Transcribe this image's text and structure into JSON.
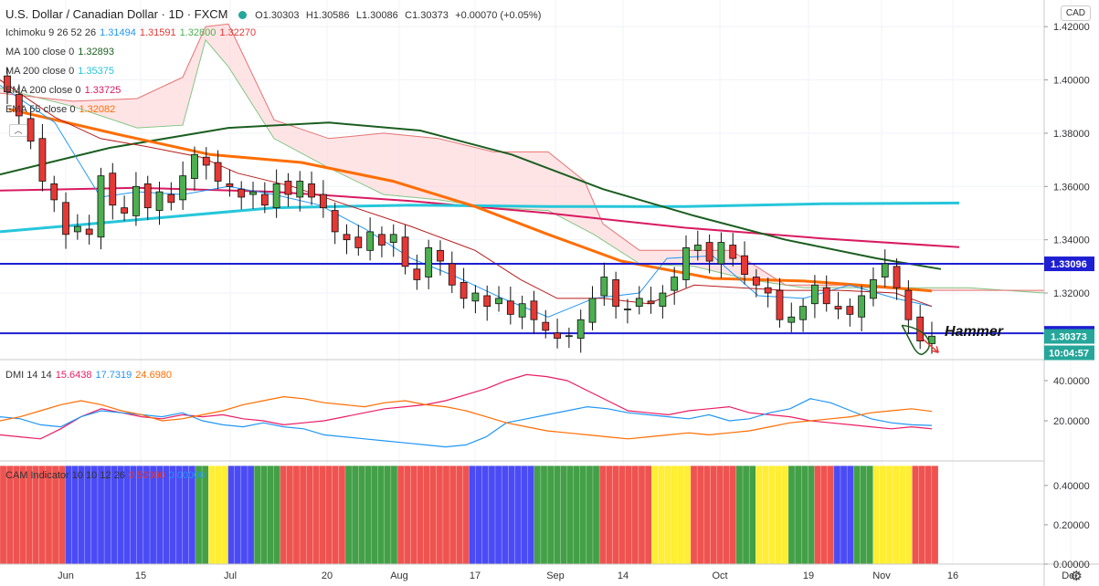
{
  "header": {
    "title": "U.S. Dollar / Canadian Dollar · 1D · FXCM",
    "open": "O1.30303",
    "high": "H1.30586",
    "low": "L1.30086",
    "close": "C1.30373",
    "change": "+0.00070 (+0.05%)",
    "currency": "CAD"
  },
  "indicators": [
    {
      "name": "Ichimoku 9 26 52 26",
      "values": [
        "1.31494",
        "1.31591",
        "1.32800",
        "1.32270"
      ],
      "colors": [
        "#2196f3",
        "#e53935",
        "#4caf50",
        "#e53935"
      ]
    },
    {
      "name": "MA 100 close 0",
      "values": [
        "1.32893"
      ],
      "colors": [
        "#1b5e20"
      ]
    },
    {
      "name": "MA 200 close 0",
      "values": [
        "1.35375"
      ],
      "colors": [
        "#26c6da"
      ]
    },
    {
      "name": "EMA 200 close 0",
      "values": [
        "1.33725"
      ],
      "colors": [
        "#d81b60"
      ]
    },
    {
      "name": "EMA 55 close 0",
      "values": [
        "1.32082"
      ],
      "colors": [
        "#ff6d00"
      ]
    }
  ],
  "dmi_legend": {
    "name": "DMI 14 14",
    "values": [
      "15.6438",
      "17.7319",
      "24.6980"
    ],
    "colors": [
      "#e91e63",
      "#2196f3",
      "#ff6d00"
    ]
  },
  "cam_legend": {
    "name": "CAM Indicator 10 10 12 26",
    "values": [
      "0.50000",
      "0.00000"
    ],
    "colors": [
      "#e53935",
      "#2196f3"
    ]
  },
  "annotation": {
    "text": "Hammer"
  },
  "price_badges": {
    "level_high": "1.33096",
    "level_low": "1.30488",
    "last": "1.30373",
    "countdown": "10:04:57"
  },
  "colors": {
    "up": "#4caf50",
    "down": "#e53935",
    "level_line": "#1e1ed2",
    "grid": "#f0f3fa",
    "last_badge": "#26a69a"
  },
  "chart_data": {
    "type": "candlestick",
    "symbol": "USDCAD",
    "timeframe": "1D",
    "x_tick_labels": [
      "Jun",
      "15",
      "Jul",
      "20",
      "Aug",
      "17",
      "Sep",
      "14",
      "Oct",
      "19",
      "Nov",
      "16",
      "Dec"
    ],
    "ylim": [
      1.295,
      1.43
    ],
    "y_ticks": [
      "1.42000",
      "1.40000",
      "1.38000",
      "1.36000",
      "1.34000",
      "1.32000"
    ],
    "horizontal_levels": [
      1.33096,
      1.30488
    ],
    "closes": [
      1.3955,
      1.3865,
      1.377,
      1.362,
      1.355,
      1.342,
      1.345,
      1.342,
      1.364,
      1.353,
      1.35,
      1.36,
      1.352,
      1.358,
      1.354,
      1.364,
      1.372,
      1.368,
      1.362,
      1.36,
      1.356,
      1.358,
      1.353,
      1.361,
      1.357,
      1.362,
      1.356,
      1.352,
      1.343,
      1.34,
      1.337,
      1.343,
      1.338,
      1.342,
      1.33,
      1.325,
      1.337,
      1.332,
      1.323,
      1.318,
      1.32,
      1.315,
      1.318,
      1.312,
      1.316,
      1.31,
      1.306,
      1.303,
      1.304,
      1.31,
      1.318,
      1.326,
      1.315,
      1.314,
      1.318,
      1.316,
      1.32,
      1.326,
      1.337,
      1.338,
      1.332,
      1.339,
      1.333,
      1.327,
      1.323,
      1.32,
      1.31,
      1.311,
      1.315,
      1.323,
      1.316,
      1.314,
      1.312,
      1.319,
      1.325,
      1.331,
      1.322,
      1.31,
      1.302,
      1.3038
    ],
    "dmi": {
      "series": [
        {
          "name": "DI+",
          "color": "#e91e63",
          "values": [
            13,
            12,
            11,
            16,
            22,
            26,
            24,
            22,
            21,
            23,
            22,
            23,
            21,
            20,
            18,
            19,
            20,
            22,
            24,
            26,
            27,
            28,
            30,
            33,
            36,
            40,
            43,
            42,
            40,
            35,
            30,
            25,
            24,
            23,
            25,
            26,
            27,
            24,
            23,
            22,
            20,
            19,
            18,
            17,
            16,
            17,
            16
          ]
        },
        {
          "name": "DI-",
          "color": "#2196f3",
          "values": [
            22,
            21,
            18,
            17,
            22,
            25,
            24,
            23,
            22,
            24,
            20,
            18,
            17,
            19,
            17,
            16,
            13,
            12,
            11,
            10,
            9,
            8,
            7,
            8,
            12,
            19,
            21,
            23,
            25,
            27,
            26,
            24,
            23,
            22,
            21,
            23,
            20,
            21,
            24,
            26,
            31,
            29,
            25,
            21,
            19,
            18,
            17.7
          ]
        },
        {
          "name": "ADX",
          "color": "#ff6d00",
          "values": [
            20,
            22,
            25,
            28,
            30,
            28,
            25,
            23,
            20,
            21,
            23,
            25,
            28,
            30,
            32,
            31,
            29,
            28,
            27,
            29,
            30,
            28,
            27,
            25,
            22,
            19,
            17,
            15,
            14,
            13,
            12,
            11,
            12,
            13,
            14,
            13,
            14,
            15,
            17,
            19,
            20,
            21,
            22,
            24,
            25,
            26,
            24.7
          ]
        }
      ],
      "y_ticks": [
        "40.0000",
        "20.0000"
      ],
      "ylim": [
        0,
        50
      ]
    },
    "cam": {
      "type": "bar",
      "y_ticks": [
        "0.40000",
        "0.20000",
        "0.00000"
      ],
      "ylim": [
        0,
        0.52
      ],
      "value": 0.5,
      "segments": [
        {
          "state": "red",
          "count": 10
        },
        {
          "state": "blue",
          "count": 20
        },
        {
          "state": "green",
          "count": 2
        },
        {
          "state": "yellow",
          "count": 3
        },
        {
          "state": "blue",
          "count": 4
        },
        {
          "state": "green",
          "count": 4
        },
        {
          "state": "red",
          "count": 10
        },
        {
          "state": "green",
          "count": 8
        },
        {
          "state": "red",
          "count": 11
        },
        {
          "state": "blue",
          "count": 10
        },
        {
          "state": "green",
          "count": 10
        },
        {
          "state": "red",
          "count": 8
        },
        {
          "state": "yellow",
          "count": 6
        },
        {
          "state": "red",
          "count": 7
        },
        {
          "state": "green",
          "count": 3
        },
        {
          "state": "yellow",
          "count": 5
        },
        {
          "state": "green",
          "count": 4
        },
        {
          "state": "red",
          "count": 3
        },
        {
          "state": "blue",
          "count": 3
        },
        {
          "state": "green",
          "count": 3
        },
        {
          "state": "yellow",
          "count": 6
        },
        {
          "state": "red",
          "count": 4
        }
      ],
      "state_colors": {
        "red": "#ef5350",
        "blue": "#4b4bf5",
        "green": "#43a047",
        "yellow": "#ffee33"
      }
    }
  }
}
